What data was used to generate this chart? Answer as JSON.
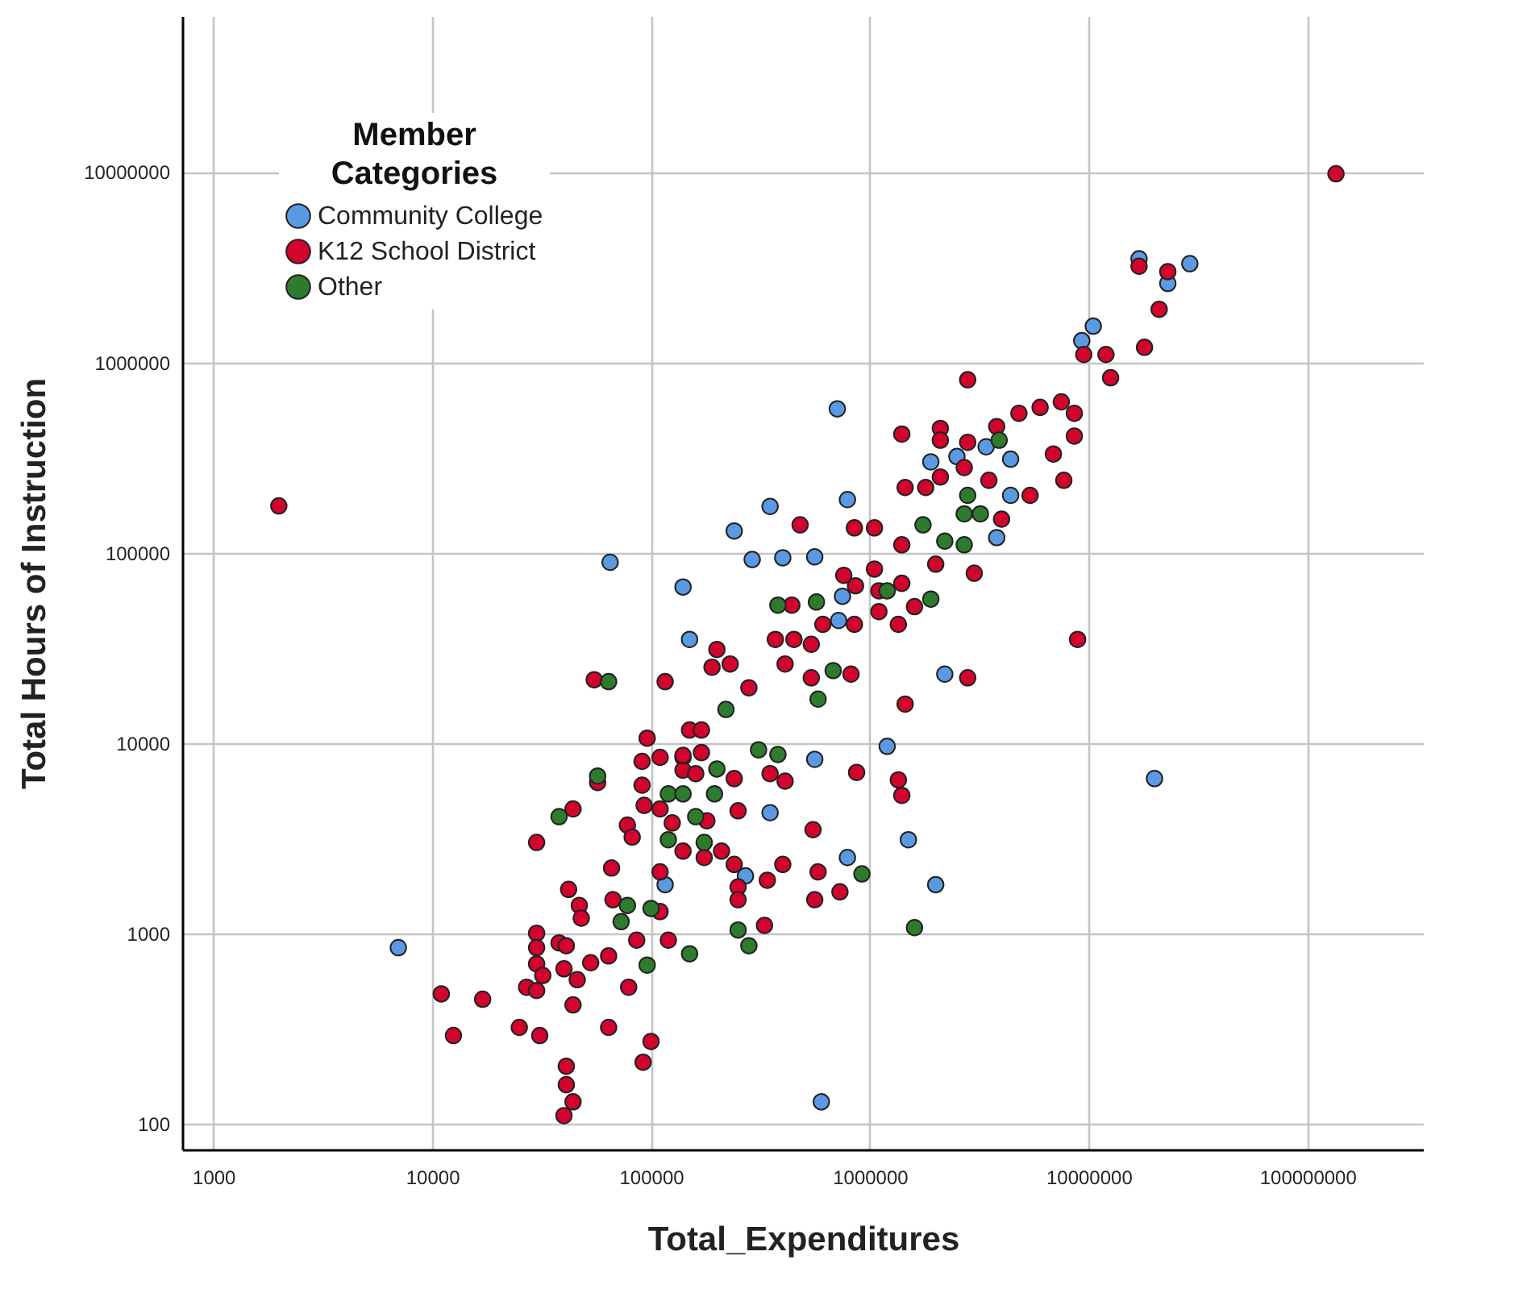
{
  "chart_data": {
    "type": "scatter",
    "xlabel": "Total_Expenditures",
    "ylabel": "Total Hours of Instruction",
    "legend_title": "Member Categories",
    "legend": "top left",
    "grid": true,
    "marker": "circle",
    "log": "xy",
    "xlim": [
      720,
      340000000
    ],
    "xticks": [
      1000,
      10000,
      100000,
      1000000,
      10000000,
      100000000
    ],
    "ylim": [
      73,
      66000000
    ],
    "yticks": [
      100,
      1000,
      10000,
      100000,
      1000000,
      10000000
    ],
    "series": [
      {
        "name": "Community College",
        "color": "#5b9ae2",
        "x": [
          7000,
          600000,
          20000000,
          65000,
          140000,
          150000,
          710000,
          240000,
          350000,
          290000,
          400000,
          790000,
          560000,
          1200000,
          1500000,
          790000,
          2000000,
          116000,
          350000,
          270000,
          2200000,
          3800000,
          560000,
          750000,
          720000,
          1900000,
          2500000,
          3400000,
          4400000,
          4400000,
          17000000,
          29000000,
          23000000,
          10500000,
          9300000
        ],
        "values": [
          840,
          130,
          6500,
          89000,
          66000,
          35000,
          570000,
          130000,
          175000,
          92000,
          94000,
          190000,
          8200,
          9600,
          3100,
          2500,
          1800,
          1800,
          4300,
          2000,
          23000,
          120000,
          95000,
          59000,
          44000,
          300000,
          320000,
          360000,
          310000,
          200000,
          3500000,
          3300000,
          2600000,
          1550000,
          1300000
        ]
      },
      {
        "name": "K12 School District",
        "color": "#d2042d",
        "x": [
          135000000,
          1990,
          8900000,
          2800000,
          17000000,
          23000000,
          21000000,
          18000000,
          9500000,
          12000000,
          12600000,
          2800000,
          1400000,
          2100000,
          2100000,
          2800000,
          3800000,
          4800000,
          6000000,
          7500000,
          8600000,
          8600000,
          6900000,
          7700000,
          5400000,
          4000000,
          3000000,
          1450000,
          1800000,
          2700000,
          3500000,
          2100000,
          480000,
          850000,
          1050000,
          1400000,
          2000000,
          760000,
          1050000,
          860000,
          1100000,
          1400000,
          1100000,
          1350000,
          1600000,
          850000,
          610000,
          540000,
          450000,
          370000,
          820000,
          540000,
          410000,
          280000,
          230000,
          1450000,
          440000,
          55000,
          116000,
          96000,
          150000,
          170000,
          91000,
          110000,
          140000,
          170000,
          200000,
          190000,
          30000,
          44000,
          57000,
          66000,
          78000,
          82000,
          42000,
          47000,
          48000,
          67000,
          30000,
          30000,
          38000,
          41000,
          30000,
          32000,
          27000,
          30000,
          40000,
          46000,
          53000,
          64000,
          86000,
          120000,
          79000,
          44000,
          11000,
          17000,
          12500,
          25000,
          31000,
          64000,
          100000,
          92000,
          41000,
          41000,
          44000,
          40000,
          110000,
          110000,
          91000,
          93000,
          110000,
          125000,
          140000,
          175000,
          210000,
          240000,
          250000,
          250000,
          330000,
          340000,
          400000,
          550000,
          580000,
          560000,
          730000,
          870000,
          1350000,
          1400000,
          180000,
          240000,
          250000,
          410000,
          350000,
          140000,
          160000,
          140000
        ],
        "values": [
          9800000,
          176000,
          35000,
          22000,
          3200000,
          3000000,
          1900000,
          1200000,
          1100000,
          1100000,
          830000,
          810000,
          420000,
          450000,
          390000,
          380000,
          460000,
          540000,
          580000,
          620000,
          540000,
          410000,
          330000,
          240000,
          200000,
          150000,
          78000,
          220000,
          220000,
          280000,
          240000,
          250000,
          140000,
          135000,
          135000,
          110000,
          87000,
          76000,
          82000,
          67000,
          63000,
          69000,
          49000,
          42000,
          52000,
          42000,
          42000,
          33000,
          35000,
          35000,
          23000,
          22000,
          26000,
          19500,
          26000,
          16000,
          53000,
          21500,
          21000,
          10600,
          11700,
          11700,
          8000,
          8400,
          8400,
          8900,
          31000,
          25000,
          3000,
          4500,
          6200,
          2200,
          3700,
          3200,
          1700,
          1400,
          1200,
          1500,
          1000,
          840,
          890,
          860,
          690,
          600,
          520,
          500,
          650,
          570,
          700,
          760,
          920,
          920,
          520,
          420,
          480,
          450,
          290,
          320,
          290,
          320,
          270,
          210,
          200,
          160,
          130,
          110,
          2100,
          1300,
          6000,
          4700,
          4500,
          3800,
          2700,
          2500,
          2700,
          2300,
          1750,
          1500,
          1100,
          1900,
          2300,
          3500,
          2100,
          1500,
          1650,
          7000,
          6400,
          5300,
          3900,
          6500,
          4400,
          6300,
          6900,
          7200,
          6900,
          8600
        ]
      },
      {
        "name": "Other",
        "color": "#2e7b2e",
        "x": [
          64000,
          220000,
          57000,
          38000,
          120000,
          140000,
          200000,
          195000,
          160000,
          120000,
          175000,
          310000,
          380000,
          78000,
          100000,
          73000,
          96000,
          150000,
          250000,
          280000,
          920000,
          1600000,
          3900000,
          2800000,
          1750000,
          2700000,
          3200000,
          2200000,
          2700000,
          1200000,
          1900000,
          380000,
          570000,
          680000,
          580000
        ],
        "values": [
          21000,
          15000,
          6700,
          4100,
          5400,
          5400,
          7300,
          5400,
          4100,
          3100,
          3000,
          9200,
          8700,
          1400,
          1350,
          1150,
          680,
          780,
          1040,
          860,
          2050,
          1070,
          390000,
          200000,
          140000,
          160000,
          160000,
          115000,
          110000,
          63000,
          57000,
          53000,
          55000,
          24000,
          17000
        ]
      }
    ]
  }
}
